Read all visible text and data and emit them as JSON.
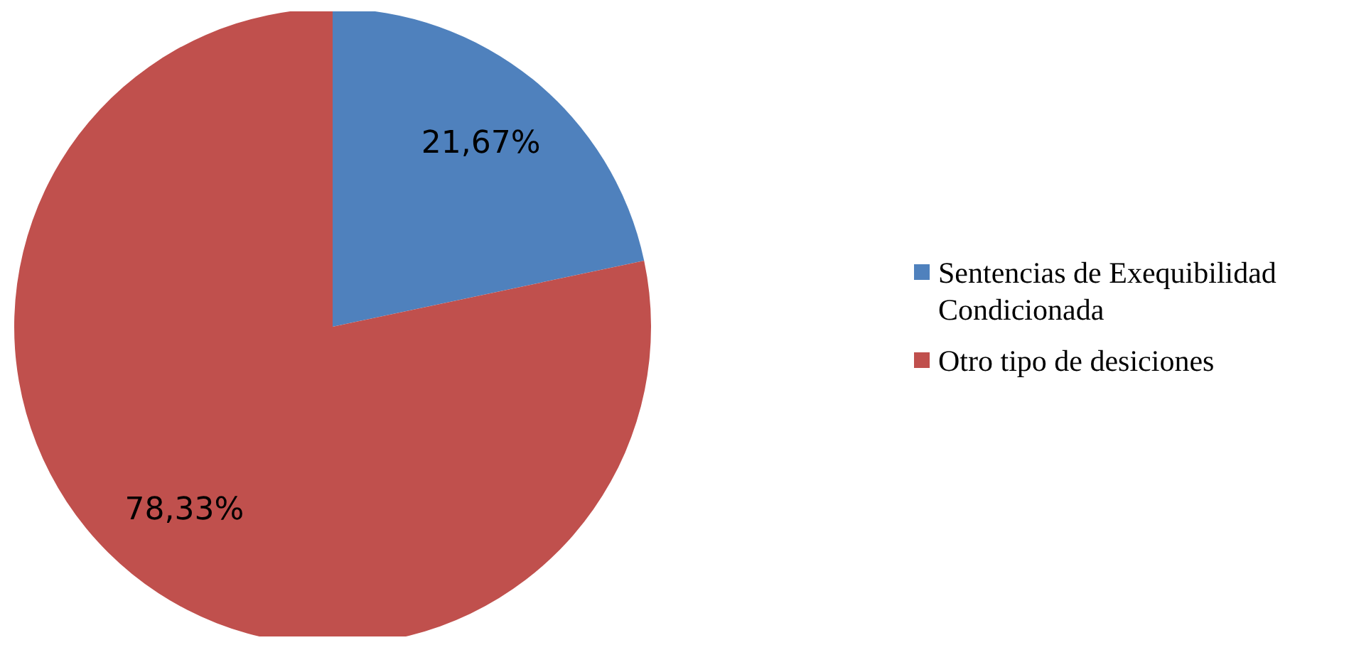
{
  "chart_data": {
    "type": "pie",
    "categories": [
      "Sentencias de Exequibilidad Condicionada",
      "Otro tipo de desiciones"
    ],
    "values": [
      21.67,
      78.33
    ],
    "colors": [
      "#4f81bd",
      "#c0504d"
    ],
    "value_labels": [
      "21,67%",
      "78,33%"
    ],
    "legend": "right"
  }
}
